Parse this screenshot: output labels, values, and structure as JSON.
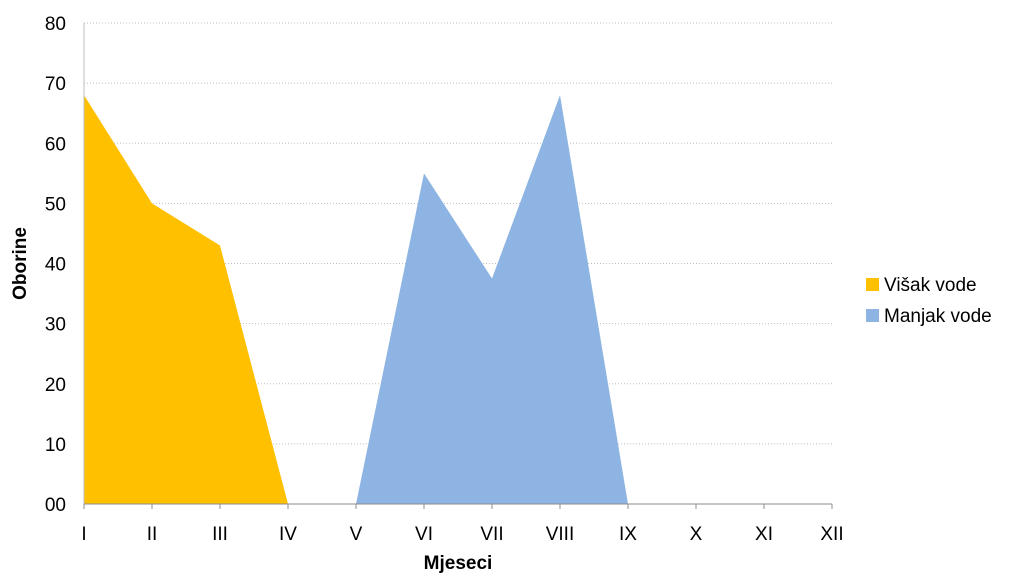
{
  "chart_data": {
    "type": "area",
    "categories": [
      "I",
      "II",
      "III",
      "IV",
      "V",
      "VI",
      "VII",
      "VIII",
      "IX",
      "X",
      "XI",
      "XII"
    ],
    "series": [
      {
        "name": "Višak vode",
        "color": "#FFC000",
        "values": [
          68,
          50,
          43,
          0,
          null,
          null,
          null,
          null,
          null,
          null,
          null,
          null
        ]
      },
      {
        "name": "Manjak vode",
        "color": "#8EB4E3",
        "values": [
          null,
          null,
          null,
          null,
          0,
          55,
          37.5,
          68,
          0,
          null,
          null,
          null
        ]
      }
    ],
    "xlabel": "Mjeseci",
    "ylabel": "Oborine",
    "ylim": [
      0,
      80
    ],
    "yticks": [
      0,
      10,
      20,
      30,
      40,
      50,
      60,
      70,
      80
    ],
    "ytick_labels": [
      "00",
      "10",
      "20",
      "30",
      "40",
      "50",
      "60",
      "70",
      "80"
    ],
    "grid": true,
    "legend_position": "right"
  }
}
